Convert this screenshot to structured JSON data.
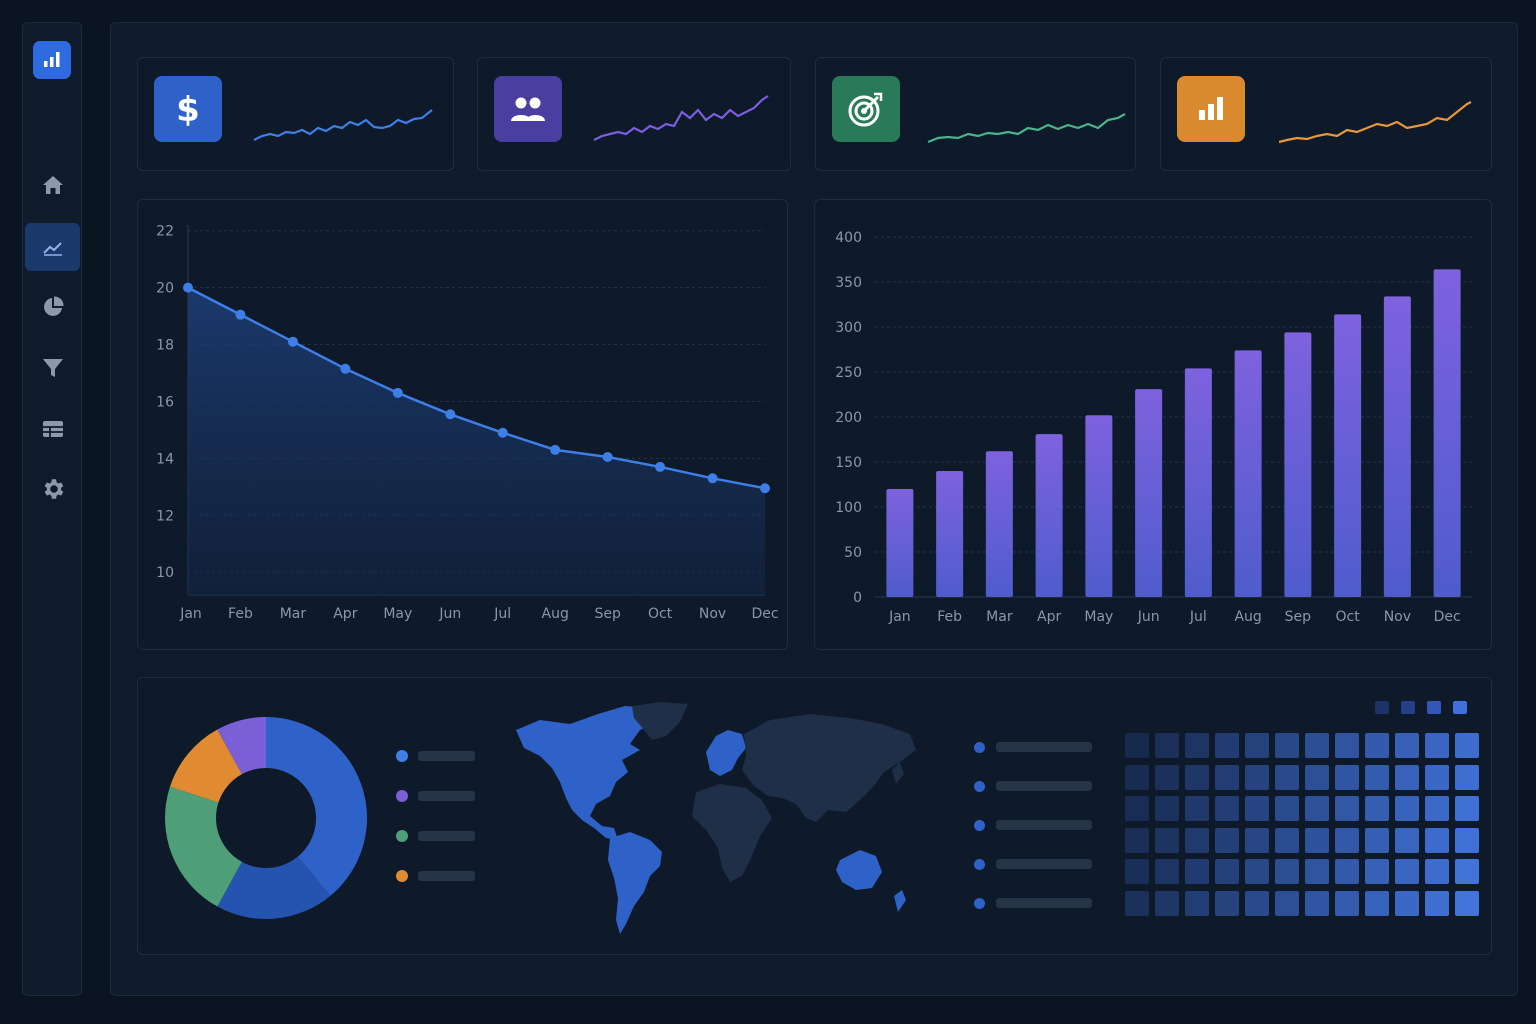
{
  "sidebar": {
    "items": [
      {
        "icon": "home-icon",
        "active": false
      },
      {
        "icon": "line-chart-icon",
        "active": true
      },
      {
        "icon": "pie-chart-icon",
        "active": false
      },
      {
        "icon": "filter-icon",
        "active": false
      },
      {
        "icon": "table-icon",
        "active": false
      },
      {
        "icon": "gear-icon",
        "active": false
      }
    ]
  },
  "kpi_cards": [
    {
      "icon": "dollar-icon",
      "color": "#2f62c9",
      "line_color": "#3f7fe6"
    },
    {
      "icon": "users-icon",
      "color": "#4a3fa0",
      "line_color": "#7a5fe0"
    },
    {
      "icon": "target-icon",
      "color": "#2a7a5a",
      "line_color": "#49b58a"
    },
    {
      "icon": "bar-chart-icon",
      "color": "#d98a2f",
      "line_color": "#e8973a"
    }
  ],
  "chart_data": [
    {
      "type": "area",
      "categories": [
        "Jan",
        "Feb",
        "Mar",
        "Apr",
        "May",
        "Jun",
        "Jul",
        "Aug",
        "Sep",
        "Oct",
        "Nov",
        "Dec"
      ],
      "values": [
        20,
        19.05,
        18.1,
        17.15,
        16.3,
        15.55,
        14.9,
        14.3,
        14.05,
        13.7,
        13.3,
        12.95
      ],
      "yticks": [
        "22",
        "20",
        "18",
        "16",
        "14",
        "12",
        "10"
      ],
      "ylim": [
        9.2,
        22.2
      ],
      "color": "#3d7fe6",
      "grid": true
    },
    {
      "type": "bar",
      "categories": [
        "Jan",
        "Feb",
        "Mar",
        "Apr",
        "May",
        "Jun",
        "Jul",
        "Aug",
        "Sep",
        "Oct",
        "Nov",
        "Dec"
      ],
      "values": [
        120,
        140,
        162,
        181,
        202,
        231,
        254,
        274,
        294,
        314,
        334,
        364
      ],
      "yticks": [
        "400",
        "350",
        "300",
        "250",
        "200",
        "150",
        "100",
        "50",
        "0"
      ],
      "ylim": [
        0,
        400
      ],
      "color": "#7b5fe0",
      "grid": true
    },
    {
      "type": "pie",
      "values": [
        39,
        19,
        22,
        12,
        8
      ],
      "colors": [
        "#2f62c9",
        "#2553b0",
        "#4e9e78",
        "#e08b32",
        "#7a5fd6"
      ],
      "legend": [
        "#3f7fe6",
        "#7a5fd6",
        "#4e9e78",
        "#e08b32"
      ]
    },
    {
      "type": "heatmap",
      "rows": 6,
      "cols": 12,
      "scale": [
        "#1b3366",
        "#263f88",
        "#3356b8",
        "#3f70dc"
      ]
    }
  ],
  "map": {
    "highlight_color": "#2f62c9",
    "base_color": "#1f2f47",
    "legend_count": 5
  }
}
